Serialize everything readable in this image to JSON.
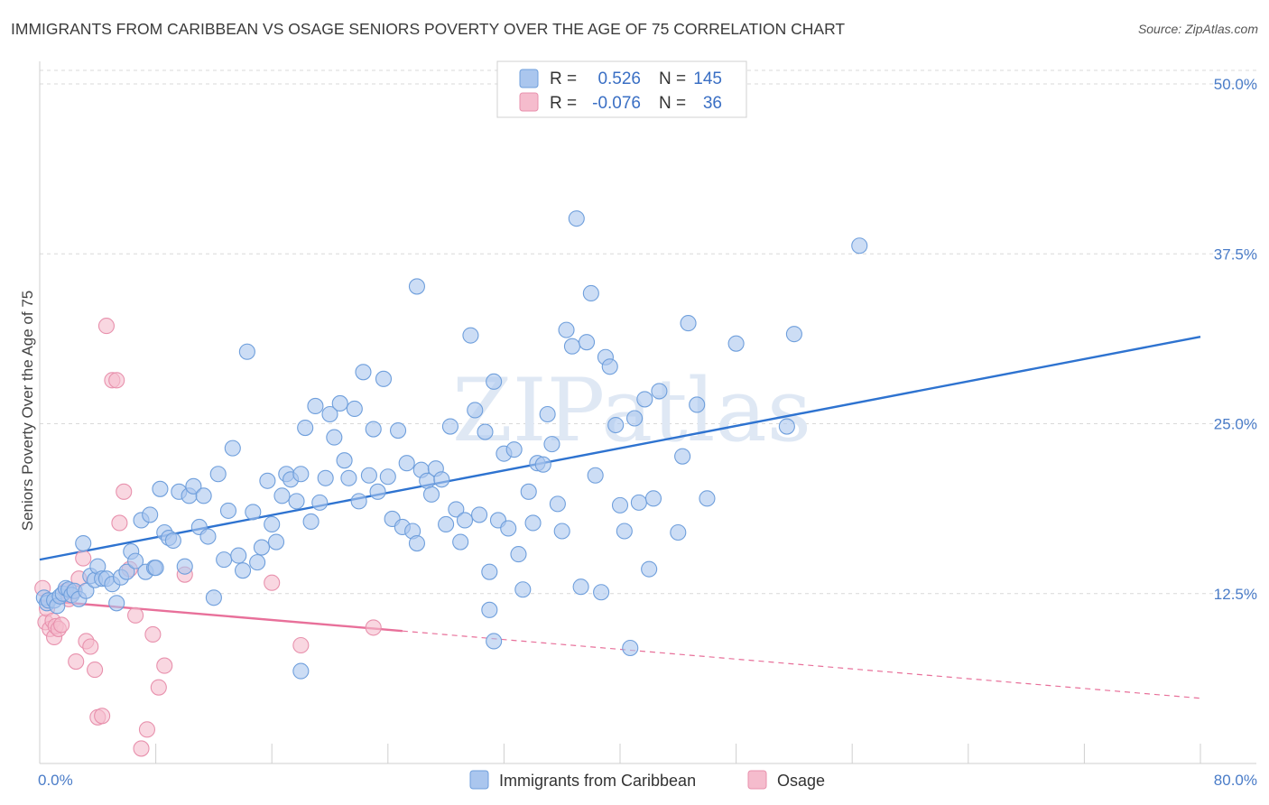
{
  "title": "IMMIGRANTS FROM CARIBBEAN VS OSAGE SENIORS POVERTY OVER THE AGE OF 75 CORRELATION CHART",
  "source": "Source: ZipAtlas.com",
  "watermark": "ZIPatlas",
  "colors": {
    "blue_fill": "#aac6ee",
    "blue_stroke": "#6f9fdc",
    "blue_line": "#2e73d0",
    "pink_fill": "#f5bccd",
    "pink_stroke": "#e891ad",
    "pink_line": "#e8709a",
    "grid": "#d9d9d9",
    "tick_text": "#4a7cc8"
  },
  "legend": {
    "rows": [
      {
        "r_label": "R =",
        "r_value": "0.526",
        "n_label": "N =",
        "n_value": "145",
        "series": "blue"
      },
      {
        "r_label": "R =",
        "r_value": "-0.076",
        "n_label": "N =",
        "n_value": "36",
        "series": "pink"
      }
    ]
  },
  "chart_data": {
    "type": "scatter",
    "title": "IMMIGRANTS FROM CARIBBEAN VS OSAGE SENIORS POVERTY OVER THE AGE OF 75 CORRELATION CHART",
    "xlabel": "",
    "ylabel": "Seniors Poverty Over the Age of 75",
    "xlim": [
      0,
      80
    ],
    "ylim": [
      0,
      51
    ],
    "x_tick_labels": [
      {
        "value": 0,
        "label": "0.0%"
      },
      {
        "value": 80,
        "label": "80.0%"
      }
    ],
    "y_ticks": [
      {
        "value": 12.5,
        "label": "12.5%"
      },
      {
        "value": 25.0,
        "label": "25.0%"
      },
      {
        "value": 37.5,
        "label": "37.5%"
      },
      {
        "value": 50.0,
        "label": "50.0%"
      }
    ],
    "x_minor_ticks": [
      8,
      16,
      24,
      32,
      40,
      48,
      56,
      64,
      72,
      80
    ],
    "grid": true,
    "legend_position": "top-center",
    "series": [
      {
        "name": "Immigrants from Caribbean",
        "color": "blue",
        "R": 0.526,
        "N": 145,
        "trend": {
          "x": [
            0,
            80
          ],
          "y": [
            15.0,
            31.4
          ],
          "dashed_from": null
        },
        "points": [
          [
            0.3,
            12.2
          ],
          [
            0.5,
            11.8
          ],
          [
            0.6,
            12.0
          ],
          [
            1.0,
            12.0
          ],
          [
            1.2,
            11.6
          ],
          [
            1.4,
            12.3
          ],
          [
            1.6,
            12.5
          ],
          [
            1.8,
            12.9
          ],
          [
            2.0,
            12.8
          ],
          [
            2.2,
            12.4
          ],
          [
            2.4,
            12.7
          ],
          [
            2.7,
            12.1
          ],
          [
            3.0,
            16.2
          ],
          [
            3.2,
            12.7
          ],
          [
            3.5,
            13.8
          ],
          [
            3.8,
            13.5
          ],
          [
            4.0,
            14.5
          ],
          [
            4.3,
            13.6
          ],
          [
            4.6,
            13.6
          ],
          [
            5.0,
            13.2
          ],
          [
            5.3,
            11.8
          ],
          [
            5.6,
            13.7
          ],
          [
            6.0,
            14.1
          ],
          [
            6.3,
            15.6
          ],
          [
            6.6,
            14.9
          ],
          [
            7.0,
            17.9
          ],
          [
            7.3,
            14.1
          ],
          [
            7.6,
            18.3
          ],
          [
            7.9,
            14.4
          ],
          [
            8.3,
            20.2
          ],
          [
            8.6,
            17.0
          ],
          [
            8.9,
            16.6
          ],
          [
            9.2,
            16.4
          ],
          [
            9.6,
            20.0
          ],
          [
            10.0,
            14.5
          ],
          [
            10.3,
            19.7
          ],
          [
            10.6,
            20.4
          ],
          [
            11.0,
            17.4
          ],
          [
            11.3,
            19.7
          ],
          [
            11.6,
            16.7
          ],
          [
            12.0,
            12.2
          ],
          [
            12.3,
            21.3
          ],
          [
            12.7,
            15.0
          ],
          [
            13.0,
            18.6
          ],
          [
            13.3,
            23.2
          ],
          [
            13.7,
            15.3
          ],
          [
            14.0,
            14.2
          ],
          [
            14.3,
            30.3
          ],
          [
            14.7,
            18.5
          ],
          [
            15.0,
            14.8
          ],
          [
            15.3,
            15.9
          ],
          [
            15.7,
            20.8
          ],
          [
            16.0,
            17.6
          ],
          [
            16.3,
            16.3
          ],
          [
            16.7,
            19.7
          ],
          [
            17.0,
            21.3
          ],
          [
            17.3,
            20.9
          ],
          [
            17.7,
            19.3
          ],
          [
            18.0,
            21.3
          ],
          [
            18.3,
            24.7
          ],
          [
            18.7,
            17.8
          ],
          [
            19.0,
            26.3
          ],
          [
            19.3,
            19.2
          ],
          [
            19.7,
            21.0
          ],
          [
            20.0,
            25.7
          ],
          [
            20.3,
            24.0
          ],
          [
            20.7,
            26.5
          ],
          [
            21.0,
            22.3
          ],
          [
            21.3,
            21.0
          ],
          [
            21.7,
            26.1
          ],
          [
            22.0,
            19.3
          ],
          [
            22.3,
            28.8
          ],
          [
            22.7,
            21.2
          ],
          [
            23.0,
            24.6
          ],
          [
            23.3,
            20.0
          ],
          [
            23.7,
            28.3
          ],
          [
            24.0,
            21.1
          ],
          [
            24.3,
            18.0
          ],
          [
            24.7,
            24.5
          ],
          [
            25.0,
            17.4
          ],
          [
            25.3,
            22.1
          ],
          [
            25.7,
            17.1
          ],
          [
            26.0,
            16.2
          ],
          [
            26.3,
            21.6
          ],
          [
            26.7,
            20.8
          ],
          [
            27.0,
            19.8
          ],
          [
            27.3,
            21.7
          ],
          [
            27.7,
            20.9
          ],
          [
            28.0,
            17.6
          ],
          [
            28.3,
            24.8
          ],
          [
            28.7,
            18.7
          ],
          [
            29.0,
            16.3
          ],
          [
            29.3,
            17.9
          ],
          [
            29.7,
            31.5
          ],
          [
            30.0,
            26.0
          ],
          [
            30.3,
            18.3
          ],
          [
            30.7,
            24.4
          ],
          [
            31.0,
            14.1
          ],
          [
            31.3,
            28.1
          ],
          [
            31.6,
            17.9
          ],
          [
            32.0,
            22.8
          ],
          [
            32.3,
            17.3
          ],
          [
            32.7,
            23.1
          ],
          [
            33.0,
            15.4
          ],
          [
            33.3,
            12.8
          ],
          [
            33.7,
            20.0
          ],
          [
            34.0,
            17.7
          ],
          [
            34.3,
            22.1
          ],
          [
            34.7,
            22.0
          ],
          [
            35.0,
            25.7
          ],
          [
            35.3,
            23.5
          ],
          [
            35.7,
            19.1
          ],
          [
            36.0,
            17.1
          ],
          [
            36.3,
            31.9
          ],
          [
            36.7,
            30.7
          ],
          [
            37.0,
            40.1
          ],
          [
            37.3,
            13.0
          ],
          [
            37.7,
            31.0
          ],
          [
            38.0,
            34.6
          ],
          [
            38.3,
            21.2
          ],
          [
            38.7,
            12.6
          ],
          [
            39.0,
            29.9
          ],
          [
            39.3,
            29.2
          ],
          [
            39.7,
            24.9
          ],
          [
            40.0,
            19.0
          ],
          [
            40.3,
            17.1
          ],
          [
            40.7,
            8.5
          ],
          [
            41.0,
            25.4
          ],
          [
            41.3,
            19.2
          ],
          [
            41.7,
            26.8
          ],
          [
            42.0,
            14.3
          ],
          [
            42.3,
            19.5
          ],
          [
            42.7,
            27.4
          ],
          [
            44.0,
            17.0
          ],
          [
            44.3,
            22.6
          ],
          [
            44.7,
            32.4
          ],
          [
            45.3,
            26.4
          ],
          [
            46.0,
            19.5
          ],
          [
            48.0,
            30.9
          ],
          [
            51.5,
            24.8
          ],
          [
            52.0,
            31.6
          ],
          [
            56.5,
            38.1
          ],
          [
            18.0,
            6.8
          ],
          [
            31.0,
            11.3
          ],
          [
            31.3,
            9.0
          ],
          [
            26.0,
            35.1
          ],
          [
            8.0,
            14.4
          ]
        ]
      },
      {
        "name": "Osage",
        "color": "pink",
        "R": -0.076,
        "N": 36,
        "trend": {
          "x": [
            0,
            80
          ],
          "y": [
            12.0,
            4.8
          ],
          "solid_until_x": 25
        },
        "points": [
          [
            0.2,
            12.9
          ],
          [
            0.4,
            10.4
          ],
          [
            0.5,
            11.4
          ],
          [
            0.7,
            9.9
          ],
          [
            0.9,
            10.5
          ],
          [
            1.0,
            9.3
          ],
          [
            1.1,
            10.1
          ],
          [
            1.3,
            9.9
          ],
          [
            1.5,
            10.2
          ],
          [
            1.8,
            12.7
          ],
          [
            2.0,
            12.1
          ],
          [
            2.3,
            12.7
          ],
          [
            2.5,
            7.5
          ],
          [
            2.7,
            13.6
          ],
          [
            3.0,
            15.1
          ],
          [
            3.2,
            9.0
          ],
          [
            3.5,
            8.6
          ],
          [
            3.8,
            6.9
          ],
          [
            4.0,
            3.4
          ],
          [
            4.3,
            3.5
          ],
          [
            4.6,
            32.2
          ],
          [
            5.0,
            28.2
          ],
          [
            5.3,
            28.2
          ],
          [
            5.5,
            17.7
          ],
          [
            5.8,
            20.0
          ],
          [
            6.2,
            14.3
          ],
          [
            6.6,
            10.9
          ],
          [
            7.0,
            1.1
          ],
          [
            7.4,
            2.5
          ],
          [
            7.8,
            9.5
          ],
          [
            8.2,
            5.6
          ],
          [
            8.6,
            7.2
          ],
          [
            16.0,
            13.3
          ],
          [
            18.0,
            8.7
          ],
          [
            23.0,
            10.0
          ],
          [
            10.0,
            13.9
          ]
        ]
      }
    ]
  },
  "bottom_legend": [
    {
      "label": "Immigrants from Caribbean",
      "color": "blue"
    },
    {
      "label": "Osage",
      "color": "pink"
    }
  ]
}
